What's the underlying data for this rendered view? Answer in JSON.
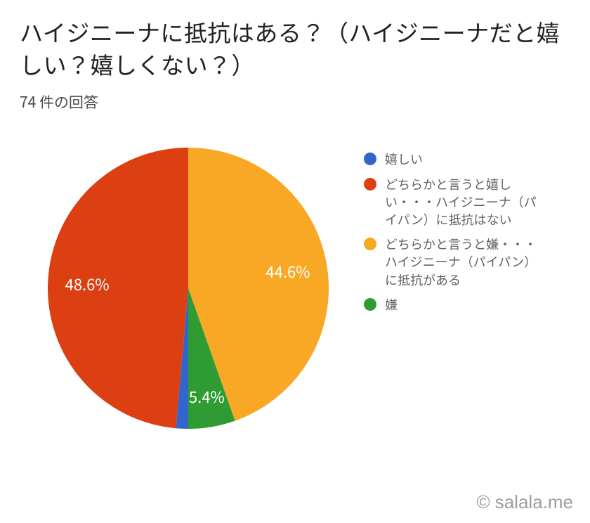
{
  "title": "ハイジニーナに抵抗はある？（ハイジニーナだと嬉しい？嬉しくない？）",
  "subtitle": "74 件の回答",
  "watermark": "© salala.me",
  "chart": {
    "type": "pie",
    "background_color": "#ffffff",
    "label_color": "#ffffff",
    "label_fontsize": 22,
    "legend_fontsize": 18,
    "legend_text_color": "#5f6368",
    "radius": 200,
    "start_angle_deg": -90,
    "direction": "clockwise",
    "slices": [
      {
        "key": "orange",
        "label": "どちらかと言うと嫌・・・ハイジニーナ（パイパン）に抵抗がある",
        "value": 44.6,
        "color": "#f9a825",
        "show_pct_label": true,
        "pct_label": "44.6%"
      },
      {
        "key": "green",
        "label": "嫌",
        "value": 5.4,
        "color": "#2e9c33",
        "show_pct_label": true,
        "pct_label": "5.4%"
      },
      {
        "key": "blue",
        "label": "嬉しい",
        "value": 1.4,
        "color": "#3366cc",
        "show_pct_label": false,
        "pct_label": ""
      },
      {
        "key": "red",
        "label": "どちらかと言うと嬉しい・・・ハイジニーナ（パイパン）に抵抗はない",
        "value": 48.6,
        "color": "#db3f12",
        "show_pct_label": true,
        "pct_label": "48.6%"
      }
    ],
    "legend_order": [
      "blue",
      "red",
      "orange",
      "green"
    ]
  }
}
